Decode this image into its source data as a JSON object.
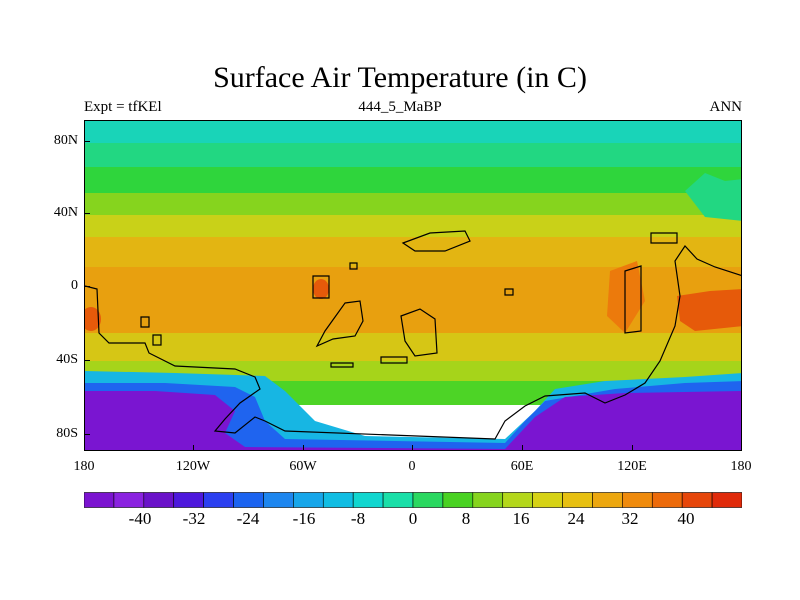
{
  "title": "Surface Air Temperature (in C)",
  "subtitle_left": "Expt = tfKEl",
  "subtitle_center": "444_5_MaBP",
  "subtitle_right": "ANN",
  "latitude_ticks": [
    "80N",
    "40N",
    "0",
    "40S",
    "80S"
  ],
  "longitude_ticks": [
    "180",
    "120W",
    "60W",
    "0",
    "60E",
    "120E",
    "180"
  ],
  "colorbar": {
    "labels": [
      "-40",
      "-32",
      "-24",
      "-16",
      "-8",
      "0",
      "8",
      "16",
      "24",
      "32",
      "40"
    ],
    "colors": [
      "#7b13d0",
      "#8a22e0",
      "#6a12c9",
      "#4d18dc",
      "#2b3ff0",
      "#1b63f0",
      "#1d86ef",
      "#16a6ea",
      "#10bde3",
      "#10d6cf",
      "#19dfa8",
      "#2ad860",
      "#49d222",
      "#86d41e",
      "#b4d71b",
      "#d6d215",
      "#e7c011",
      "#eca70f",
      "#ef8a0c",
      "#ec6a0a",
      "#e6460a",
      "#e02a0a"
    ]
  },
  "legend_regions": {
    "polar_north": "#19dfa8",
    "tropics": "#e7a70f",
    "hot_spots": "#e65a0a",
    "antarctic_cold": "#7b13d0"
  }
}
